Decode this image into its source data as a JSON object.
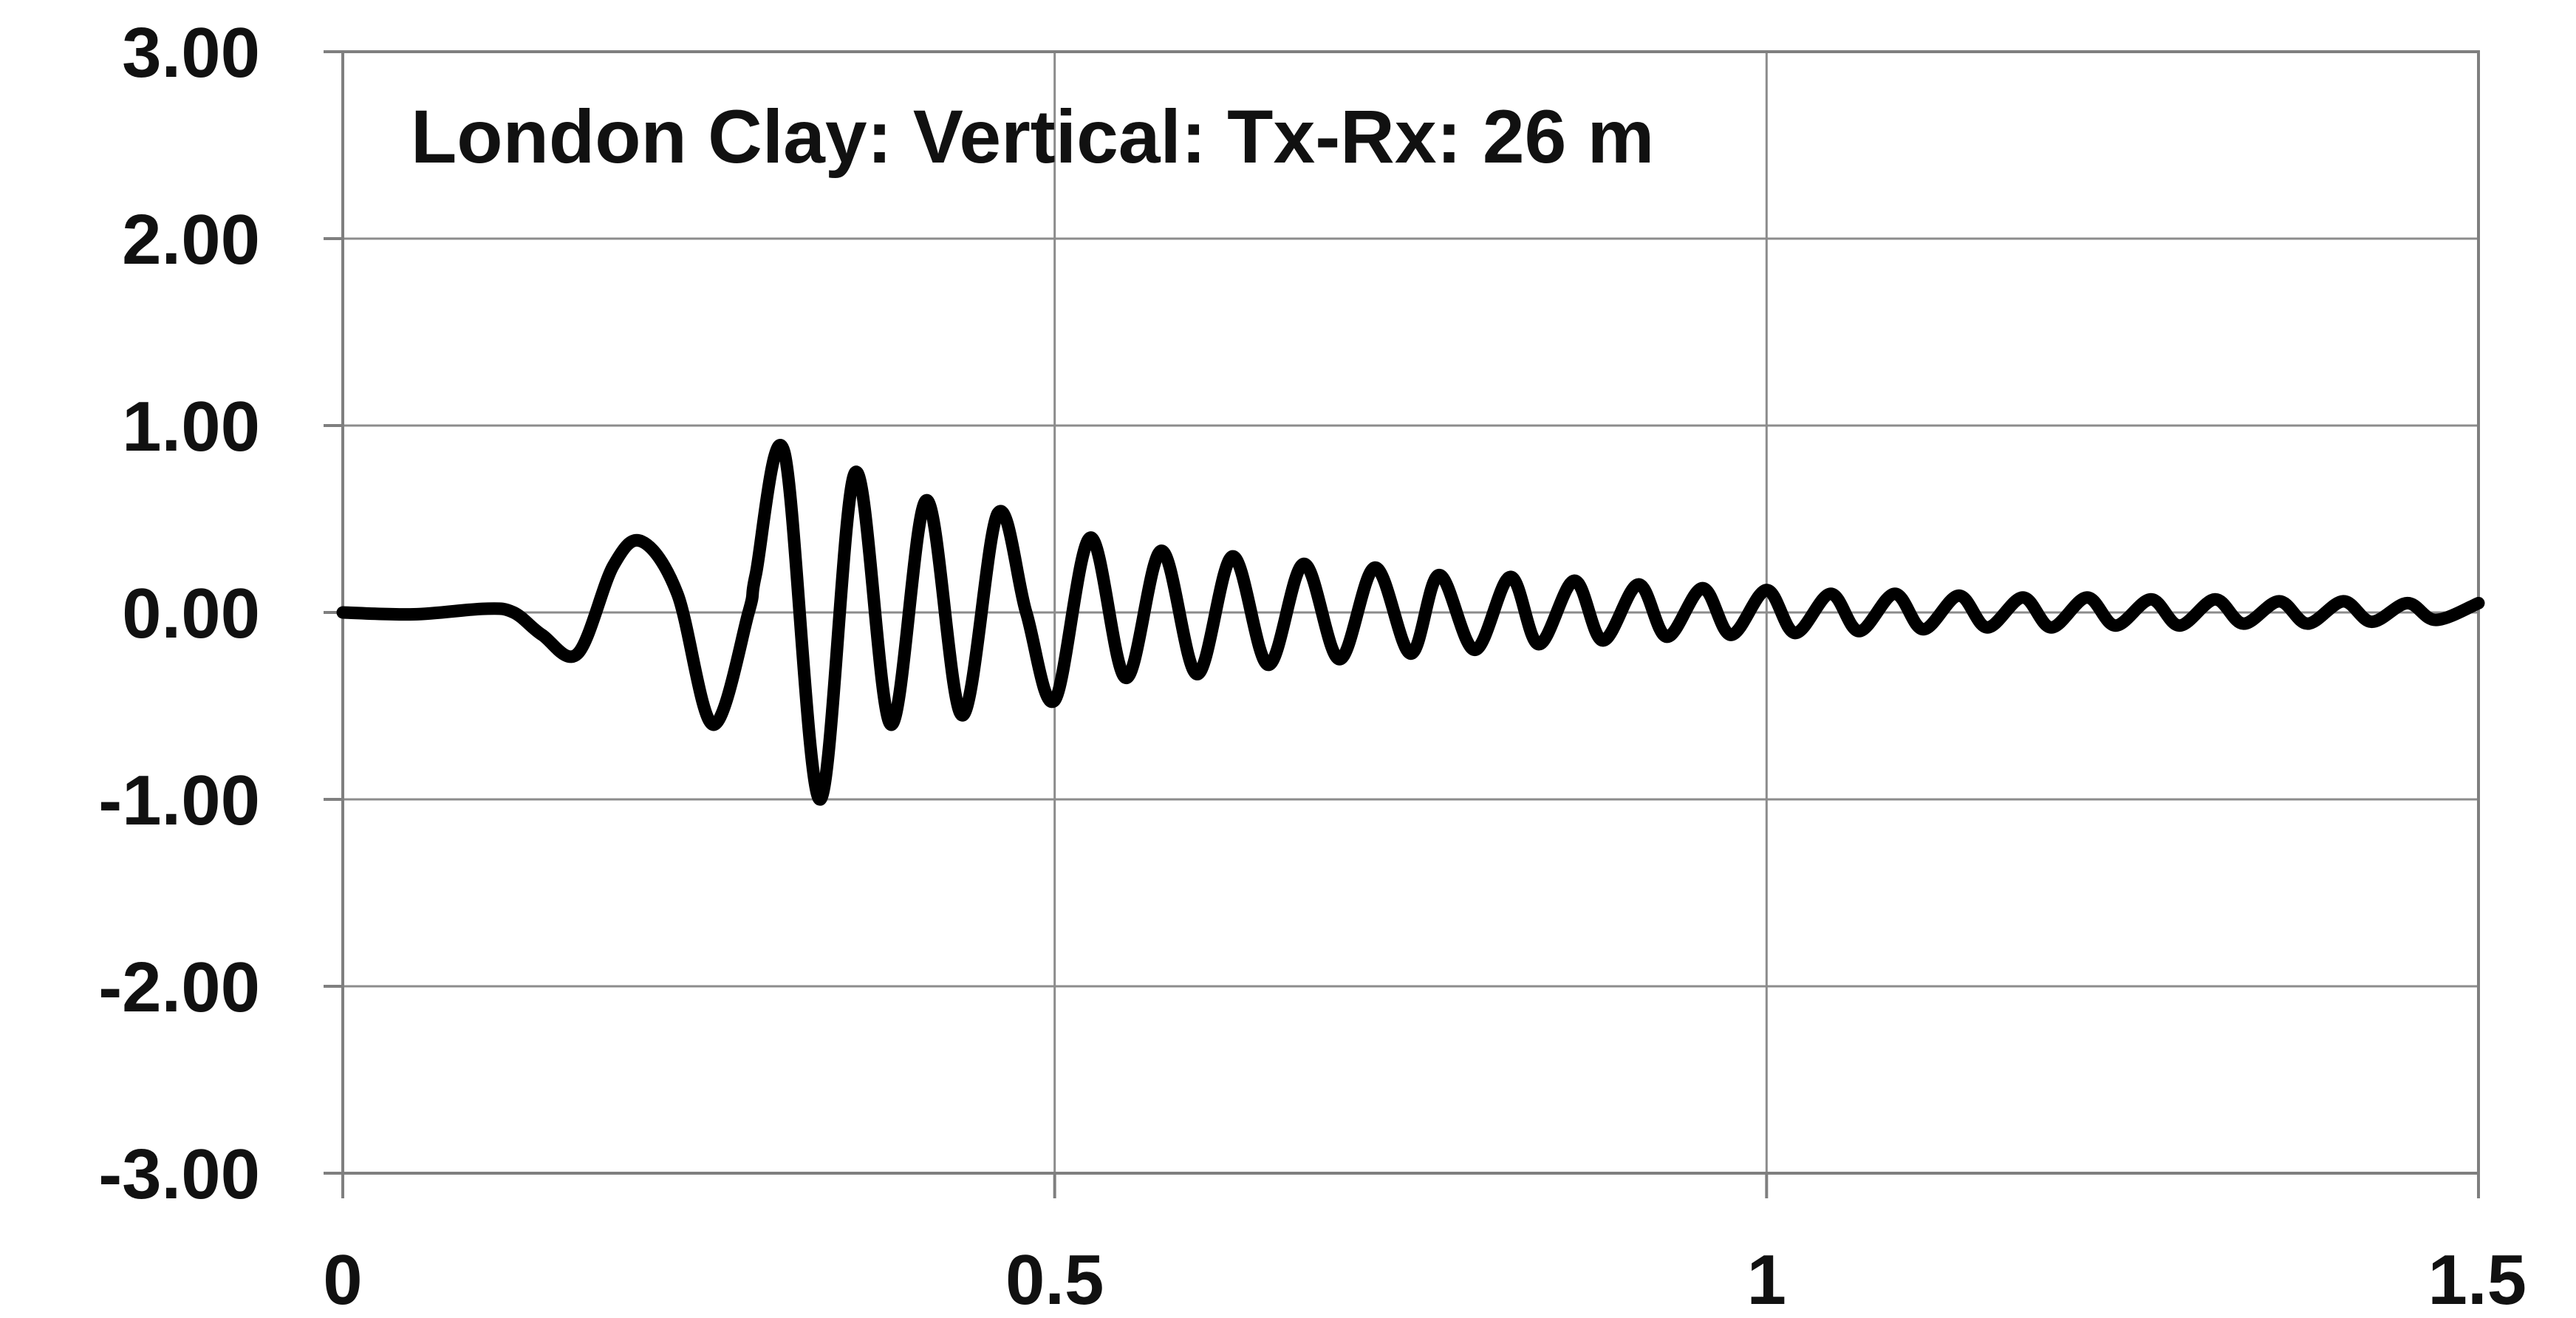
{
  "chart_data": {
    "type": "line",
    "title": "London Clay:  Vertical: Tx-Rx: 26 m",
    "xlabel": "",
    "ylabel": "",
    "xlim": [
      0,
      1.5
    ],
    "ylim": [
      -3,
      3
    ],
    "x_ticks": [
      0,
      0.5,
      1,
      1.5
    ],
    "x_tick_labels": [
      "0",
      "0.5",
      "1",
      "1.5"
    ],
    "y_ticks": [
      3,
      2,
      1,
      0,
      -1,
      -2,
      -3
    ],
    "y_tick_labels": [
      "3.00",
      "2.00",
      "1.00",
      "0.00",
      "-1.00",
      "-2.00",
      "-3.00"
    ],
    "grid": true,
    "legend": false,
    "line_color": "#000000",
    "grid_color": "#8c8c8c",
    "frame_color": "#7f7f7f",
    "series": [
      {
        "x": [
          0,
          0.05,
          0.1,
          0.12,
          0.14,
          0.165,
          0.19,
          0.21,
          0.235,
          0.26,
          0.285,
          0.29,
          0.31,
          0.335,
          0.36,
          0.385,
          0.41,
          0.435,
          0.46,
          0.48,
          0.5,
          0.525,
          0.55,
          0.575,
          0.6,
          0.625,
          0.65,
          0.675,
          0.7,
          0.725,
          0.75,
          0.77,
          0.795,
          0.82,
          0.84,
          0.865,
          0.885,
          0.91,
          0.93,
          0.955,
          0.975,
          1.0,
          1.02,
          1.045,
          1.065,
          1.09,
          1.11,
          1.135,
          1.155,
          1.18,
          1.2,
          1.225,
          1.245,
          1.27,
          1.29,
          1.315,
          1.335,
          1.36,
          1.38,
          1.405,
          1.425,
          1.45,
          1.47,
          1.5
        ],
        "y": [
          0,
          -0.01,
          0.02,
          0.0,
          -0.12,
          -0.22,
          0.25,
          0.38,
          0.1,
          -0.6,
          0.0,
          0.2,
          0.86,
          -1.0,
          0.75,
          -0.6,
          0.6,
          -0.55,
          0.53,
          0.0,
          -0.47,
          0.4,
          -0.35,
          0.33,
          -0.33,
          0.3,
          -0.28,
          0.26,
          -0.25,
          0.24,
          -0.22,
          0.2,
          -0.2,
          0.19,
          -0.17,
          0.17,
          -0.15,
          0.15,
          -0.13,
          0.13,
          -0.12,
          0.12,
          -0.11,
          0.1,
          -0.1,
          0.1,
          -0.09,
          0.09,
          -0.08,
          0.08,
          -0.08,
          0.08,
          -0.07,
          0.07,
          -0.07,
          0.07,
          -0.06,
          0.06,
          -0.06,
          0.06,
          -0.05,
          0.05,
          -0.04,
          0.05
        ]
      }
    ]
  }
}
